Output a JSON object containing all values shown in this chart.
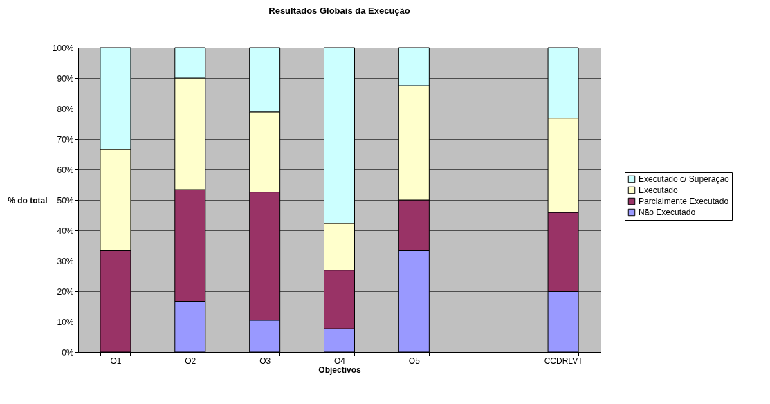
{
  "chart_data": {
    "type": "bar",
    "title": "Resultados Globais da Execução",
    "xlabel": "Objectivos",
    "ylabel": "% do total",
    "categories": [
      "O1",
      "O2",
      "O3",
      "O4",
      "O5",
      null,
      "CCDRLVT"
    ],
    "stacked": true,
    "series": [
      {
        "name": "Não Executado",
        "color": "#9999ff",
        "values": [
          0,
          16.7,
          10.5,
          7.7,
          33.3,
          null,
          19.9
        ]
      },
      {
        "name": "Parcialmente Executado",
        "color": "#993366",
        "values": [
          33.3,
          36.7,
          42.1,
          19.2,
          16.7,
          null,
          26.0
        ]
      },
      {
        "name": "Executado",
        "color": "#ffffcc",
        "values": [
          33.3,
          36.6,
          26.3,
          15.4,
          37.5,
          null,
          31.0
        ]
      },
      {
        "name": "Executado c/ Superação",
        "color": "#ccffff",
        "values": [
          33.4,
          10.0,
          21.1,
          57.7,
          12.5,
          null,
          23.1
        ]
      }
    ],
    "ylim": [
      0,
      100
    ],
    "yticks": [
      {
        "value": 0,
        "label": "0%"
      },
      {
        "value": 10,
        "label": "10%"
      },
      {
        "value": 20,
        "label": "20%"
      },
      {
        "value": 30,
        "label": "30%"
      },
      {
        "value": 40,
        "label": "40%"
      },
      {
        "value": 50,
        "label": "50%"
      },
      {
        "value": 60,
        "label": "60%"
      },
      {
        "value": 70,
        "label": "70%"
      },
      {
        "value": 80,
        "label": "80%"
      },
      {
        "value": 90,
        "label": "90%"
      },
      {
        "value": 100,
        "label": "100%"
      }
    ],
    "grid": "y",
    "legend": "right"
  }
}
